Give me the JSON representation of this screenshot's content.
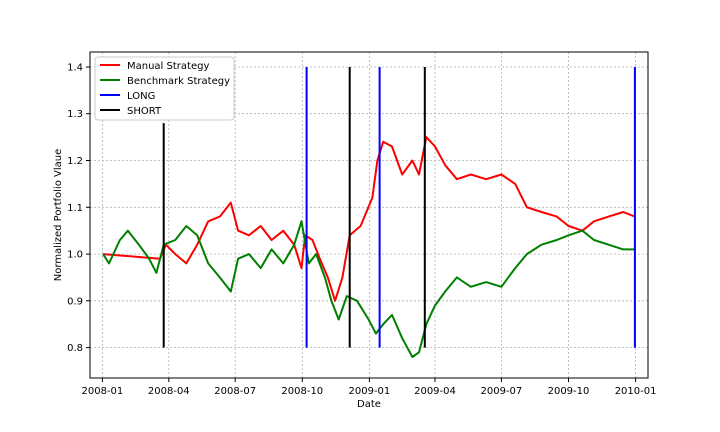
{
  "chart_data": {
    "type": "line",
    "title": "",
    "xlabel": "Date",
    "ylabel": "Normalized Portfolio Vlaue",
    "xlim": [
      "2007-12-15",
      "2010-01-18"
    ],
    "ylim": [
      0.735,
      1.432
    ],
    "grid": true,
    "grid_style": "dashed gray",
    "legend_position": "top-left",
    "x_ticks": [
      "2008-01-01",
      "2008-04-01",
      "2008-07-01",
      "2008-10-01",
      "2009-01-01",
      "2009-04-01",
      "2009-07-01",
      "2009-10-01",
      "2010-01-01"
    ],
    "x_tick_labels": [
      "2008-01",
      "2008-04",
      "2008-07",
      "2008-10",
      "2009-01",
      "2009-04",
      "2009-07",
      "2009-10",
      "2010-01"
    ],
    "y_ticks": [
      0.8,
      0.9,
      1.0,
      1.1,
      1.2,
      1.3,
      1.4
    ],
    "y_tick_labels": [
      "0.8",
      "0.9",
      "1.0",
      "1.1",
      "1.2",
      "1.3",
      "1.4"
    ],
    "legend": [
      {
        "label": "Manual Strategy",
        "color": "#ff0000"
      },
      {
        "label": "Benchmark Strategy",
        "color": "#008000"
      },
      {
        "label": "LONG",
        "color": "#0000ff"
      },
      {
        "label": "SHORT",
        "color": "#000000"
      }
    ],
    "series": [
      {
        "name": "Manual Strategy",
        "color": "#ff0000",
        "points": [
          [
            "2008-01-02",
            1.0
          ],
          [
            "2008-03-20",
            0.99
          ],
          [
            "2008-03-28",
            1.02
          ],
          [
            "2008-04-10",
            1.0
          ],
          [
            "2008-04-25",
            0.98
          ],
          [
            "2008-05-10",
            1.02
          ],
          [
            "2008-05-25",
            1.07
          ],
          [
            "2008-06-10",
            1.08
          ],
          [
            "2008-06-25",
            1.11
          ],
          [
            "2008-07-05",
            1.05
          ],
          [
            "2008-07-20",
            1.04
          ],
          [
            "2008-08-05",
            1.06
          ],
          [
            "2008-08-20",
            1.03
          ],
          [
            "2008-09-05",
            1.05
          ],
          [
            "2008-09-20",
            1.02
          ],
          [
            "2008-09-30",
            0.97
          ],
          [
            "2008-10-05",
            1.04
          ],
          [
            "2008-10-15",
            1.03
          ],
          [
            "2008-10-25",
            0.99
          ],
          [
            "2008-11-05",
            0.95
          ],
          [
            "2008-11-15",
            0.9
          ],
          [
            "2008-11-25",
            0.95
          ],
          [
            "2008-12-05",
            1.04
          ],
          [
            "2008-12-20",
            1.06
          ],
          [
            "2009-01-05",
            1.12
          ],
          [
            "2009-01-12",
            1.2
          ],
          [
            "2009-01-20",
            1.24
          ],
          [
            "2009-02-01",
            1.23
          ],
          [
            "2009-02-15",
            1.17
          ],
          [
            "2009-03-01",
            1.2
          ],
          [
            "2009-03-10",
            1.17
          ],
          [
            "2009-03-20",
            1.25
          ],
          [
            "2009-04-01",
            1.23
          ],
          [
            "2009-04-15",
            1.19
          ],
          [
            "2009-05-01",
            1.16
          ],
          [
            "2009-05-20",
            1.17
          ],
          [
            "2009-06-10",
            1.16
          ],
          [
            "2009-07-01",
            1.17
          ],
          [
            "2009-07-20",
            1.15
          ],
          [
            "2009-08-05",
            1.1
          ],
          [
            "2009-08-25",
            1.09
          ],
          [
            "2009-09-15",
            1.08
          ],
          [
            "2009-10-01",
            1.06
          ],
          [
            "2009-10-20",
            1.05
          ],
          [
            "2009-11-05",
            1.07
          ],
          [
            "2009-11-25",
            1.08
          ],
          [
            "2009-12-15",
            1.09
          ],
          [
            "2009-12-31",
            1.08
          ]
        ]
      },
      {
        "name": "Benchmark Strategy",
        "color": "#008000",
        "points": [
          [
            "2008-01-02",
            1.0
          ],
          [
            "2008-01-10",
            0.98
          ],
          [
            "2008-01-25",
            1.03
          ],
          [
            "2008-02-05",
            1.05
          ],
          [
            "2008-02-20",
            1.02
          ],
          [
            "2008-03-05",
            0.99
          ],
          [
            "2008-03-15",
            0.96
          ],
          [
            "2008-03-25",
            1.02
          ],
          [
            "2008-04-10",
            1.03
          ],
          [
            "2008-04-25",
            1.06
          ],
          [
            "2008-05-10",
            1.04
          ],
          [
            "2008-05-25",
            0.98
          ],
          [
            "2008-06-10",
            0.95
          ],
          [
            "2008-06-25",
            0.92
          ],
          [
            "2008-07-05",
            0.99
          ],
          [
            "2008-07-20",
            1.0
          ],
          [
            "2008-08-05",
            0.97
          ],
          [
            "2008-08-20",
            1.01
          ],
          [
            "2008-09-05",
            0.98
          ],
          [
            "2008-09-20",
            1.02
          ],
          [
            "2008-09-30",
            1.07
          ],
          [
            "2008-10-10",
            0.98
          ],
          [
            "2008-10-20",
            1.0
          ],
          [
            "2008-11-01",
            0.95
          ],
          [
            "2008-11-10",
            0.9
          ],
          [
            "2008-11-20",
            0.86
          ],
          [
            "2008-12-01",
            0.91
          ],
          [
            "2008-12-15",
            0.9
          ],
          [
            "2008-12-31",
            0.86
          ],
          [
            "2009-01-10",
            0.83
          ],
          [
            "2009-01-20",
            0.85
          ],
          [
            "2009-02-01",
            0.87
          ],
          [
            "2009-02-15",
            0.82
          ],
          [
            "2009-03-01",
            0.78
          ],
          [
            "2009-03-10",
            0.79
          ],
          [
            "2009-03-20",
            0.85
          ],
          [
            "2009-04-01",
            0.89
          ],
          [
            "2009-04-15",
            0.92
          ],
          [
            "2009-05-01",
            0.95
          ],
          [
            "2009-05-20",
            0.93
          ],
          [
            "2009-06-10",
            0.94
          ],
          [
            "2009-07-01",
            0.93
          ],
          [
            "2009-07-20",
            0.97
          ],
          [
            "2009-08-05",
            1.0
          ],
          [
            "2009-08-25",
            1.02
          ],
          [
            "2009-09-15",
            1.03
          ],
          [
            "2009-10-01",
            1.04
          ],
          [
            "2009-10-20",
            1.05
          ],
          [
            "2009-11-05",
            1.03
          ],
          [
            "2009-11-25",
            1.02
          ],
          [
            "2009-12-15",
            1.01
          ],
          [
            "2009-12-31",
            1.01
          ]
        ]
      }
    ],
    "vertical_lines": [
      {
        "type": "SHORT",
        "date": "2008-03-25",
        "color": "#000000",
        "ymin": 0.8,
        "ymax": 1.28
      },
      {
        "type": "LONG",
        "date": "2008-10-07",
        "color": "#0000ff",
        "ymin": 0.8,
        "ymax": 1.4
      },
      {
        "type": "SHORT",
        "date": "2008-12-05",
        "color": "#000000",
        "ymin": 0.8,
        "ymax": 1.4
      },
      {
        "type": "LONG",
        "date": "2009-01-15",
        "color": "#0000ff",
        "ymin": 0.8,
        "ymax": 1.4
      },
      {
        "type": "SHORT",
        "date": "2009-03-18",
        "color": "#000000",
        "ymin": 0.8,
        "ymax": 1.4
      },
      {
        "type": "LONG",
        "date": "2009-12-31",
        "color": "#0000ff",
        "ymin": 0.8,
        "ymax": 1.4
      }
    ]
  }
}
